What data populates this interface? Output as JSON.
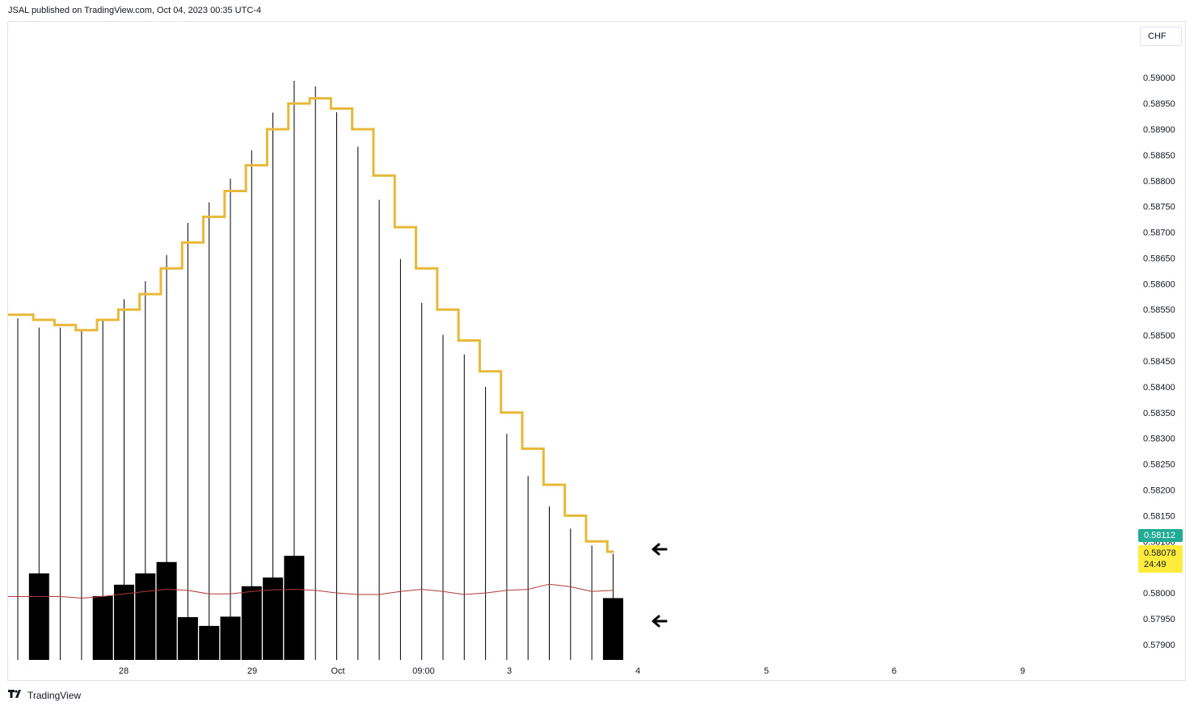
{
  "header": {
    "publisher": "JSAL published on TradingView.com, Oct 04, 2023 00:35 UTC-4"
  },
  "toolbar": {
    "currency": "CHF"
  },
  "price_tags": {
    "last_price": "0.58112",
    "current_value": "0.58078",
    "countdown": "24:49"
  },
  "footer": {
    "brand": "TradingView",
    "logo_icon": "tradingview-logo-icon"
  },
  "colors": {
    "step_line": "#e8b939",
    "ma_line": "#b23a3a",
    "bar": "#000000",
    "tag_green": "#22ab94",
    "tag_yellow": "#ffeb3b"
  },
  "chart_data": {
    "type": "bar",
    "ylim": [
      0.5787,
      0.5911
    ],
    "y_ticks": [
      "0.59000",
      "0.58950",
      "0.58900",
      "0.58850",
      "0.58800",
      "0.58750",
      "0.58700",
      "0.58650",
      "0.58600",
      "0.58550",
      "0.58500",
      "0.58450",
      "0.58400",
      "0.58350",
      "0.58300",
      "0.58250",
      "0.58200",
      "0.58150",
      "0.58100",
      "0.58050",
      "0.58000",
      "0.57950",
      "0.57900"
    ],
    "x_labels": [
      "28",
      "29",
      "Oct",
      "09:00",
      "3",
      "4",
      "5",
      "6",
      "9"
    ],
    "series": [
      {
        "kind": "thin_bars",
        "values": [
          0.58533,
          0.58515,
          0.58515,
          0.58508,
          0.58532,
          0.5857,
          0.58605,
          0.58656,
          0.58718,
          0.58758,
          0.58804,
          0.58859,
          0.58932,
          0.58994,
          0.58983,
          0.58933,
          0.58866,
          0.58763,
          0.58648,
          0.58563,
          0.58501,
          0.58463,
          0.584,
          0.58309,
          0.58227,
          0.58168,
          0.58125,
          0.58092,
          0.58076
        ]
      },
      {
        "kind": "step_line",
        "values": [
          0.5854,
          0.5853,
          0.5852,
          0.5851,
          0.5853,
          0.5855,
          0.5858,
          0.5863,
          0.5868,
          0.5873,
          0.5878,
          0.5883,
          0.589,
          0.5895,
          0.5896,
          0.5894,
          0.589,
          0.5881,
          0.5871,
          0.5863,
          0.5855,
          0.5849,
          0.5843,
          0.5835,
          0.5828,
          0.5821,
          0.5815,
          0.581,
          0.5808
        ]
      },
      {
        "kind": "ma_line",
        "values": [
          0.57993,
          0.57993,
          0.57993,
          0.5799,
          0.57993,
          0.57998,
          0.58003,
          0.58007,
          0.58005,
          0.57998,
          0.57998,
          0.58003,
          0.58006,
          0.58007,
          0.58005,
          0.58,
          0.57997,
          0.57997,
          0.58003,
          0.58007,
          0.58003,
          0.57997,
          0.58,
          0.58005,
          0.58007,
          0.58017,
          0.58012,
          0.58003,
          0.58005
        ]
      },
      {
        "kind": "wide_bars",
        "values": [
          null,
          0.58038,
          null,
          null,
          0.57994,
          0.58016,
          0.58038,
          0.5806,
          0.57953,
          0.57936,
          0.57954,
          0.58013,
          0.5803,
          0.58072,
          null,
          null,
          null,
          null,
          null,
          null,
          null,
          null,
          null,
          null,
          null,
          null,
          null,
          null,
          0.5799
        ]
      }
    ]
  }
}
